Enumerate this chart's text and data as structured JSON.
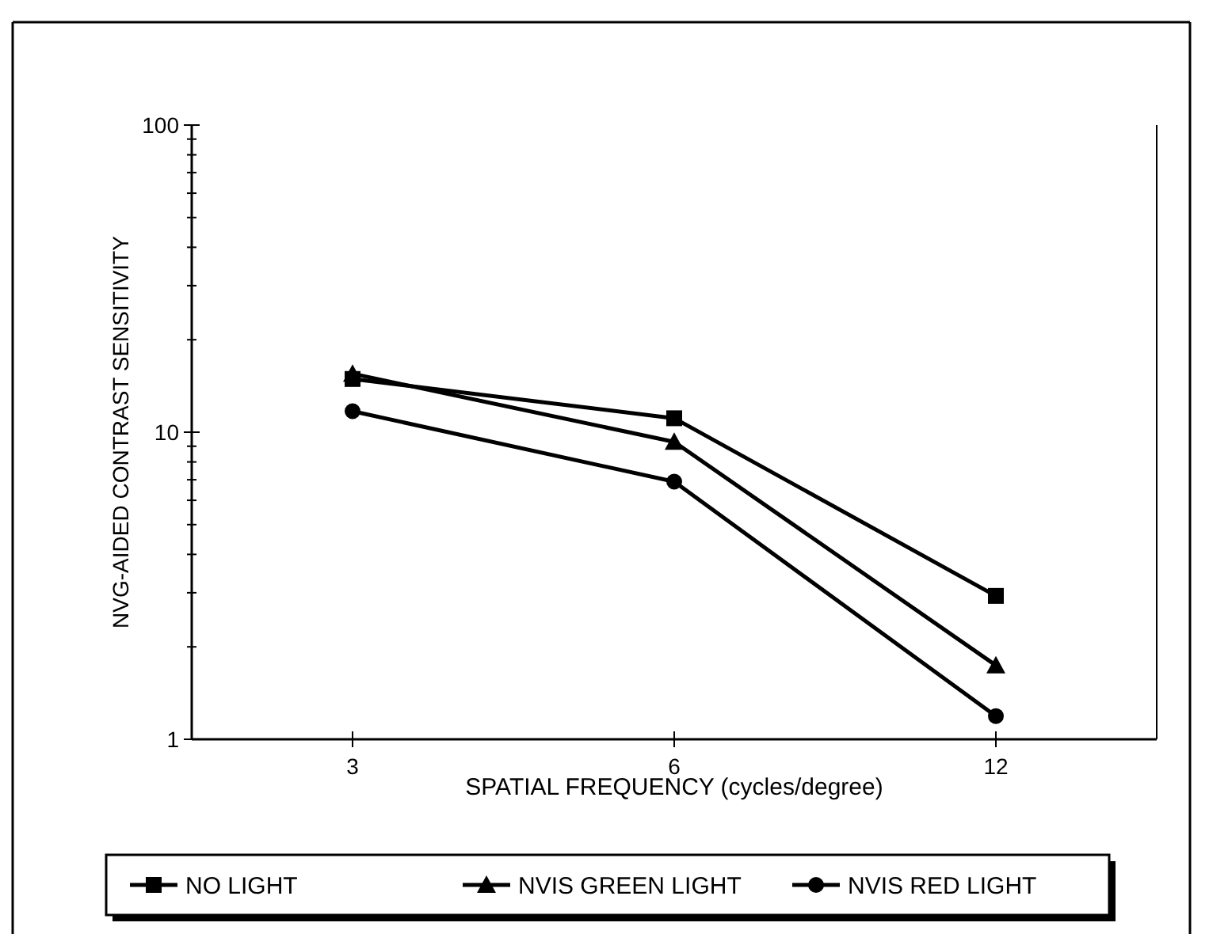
{
  "chart_data": {
    "type": "line",
    "xlabel": "SPATIAL FREQUENCY (cycles/degree)",
    "ylabel": "NVG-AIDED CONTRAST SENSITIVITY",
    "categories": [
      "3",
      "6",
      "12"
    ],
    "log": "y",
    "ylim": [
      1,
      100
    ],
    "yticks": [
      1,
      {
        "value": 2,
        "label": null
      },
      {
        "value": 3,
        "label": null
      },
      {
        "value": 4,
        "label": null
      },
      {
        "value": 5,
        "label": null
      },
      {
        "value": 6,
        "label": null
      },
      {
        "value": 7,
        "label": null
      },
      {
        "value": 8,
        "label": null
      },
      {
        "value": 9,
        "label": null
      },
      10,
      {
        "value": 20,
        "label": null
      },
      {
        "value": 30,
        "label": null
      },
      {
        "value": 40,
        "label": null
      },
      {
        "value": 50,
        "label": null
      },
      {
        "value": 60,
        "label": null
      },
      {
        "value": 70,
        "label": null
      },
      {
        "value": 80,
        "label": null
      },
      {
        "value": 90,
        "label": null
      },
      100
    ],
    "grid": false,
    "legend": "bottom",
    "series": [
      {
        "name": "NO LIGHT",
        "color": "#000000",
        "marker": "square",
        "values": [
          14.9,
          11.1,
          2.93
        ]
      },
      {
        "name": "NVIS GREEN LIGHT",
        "color": "#000000",
        "marker": "triangle",
        "values": [
          15.5,
          9.3,
          1.74
        ]
      },
      {
        "name": "NVIS RED LIGHT",
        "color": "#000000",
        "marker": "circle",
        "values": [
          11.7,
          6.9,
          1.19
        ]
      }
    ]
  }
}
